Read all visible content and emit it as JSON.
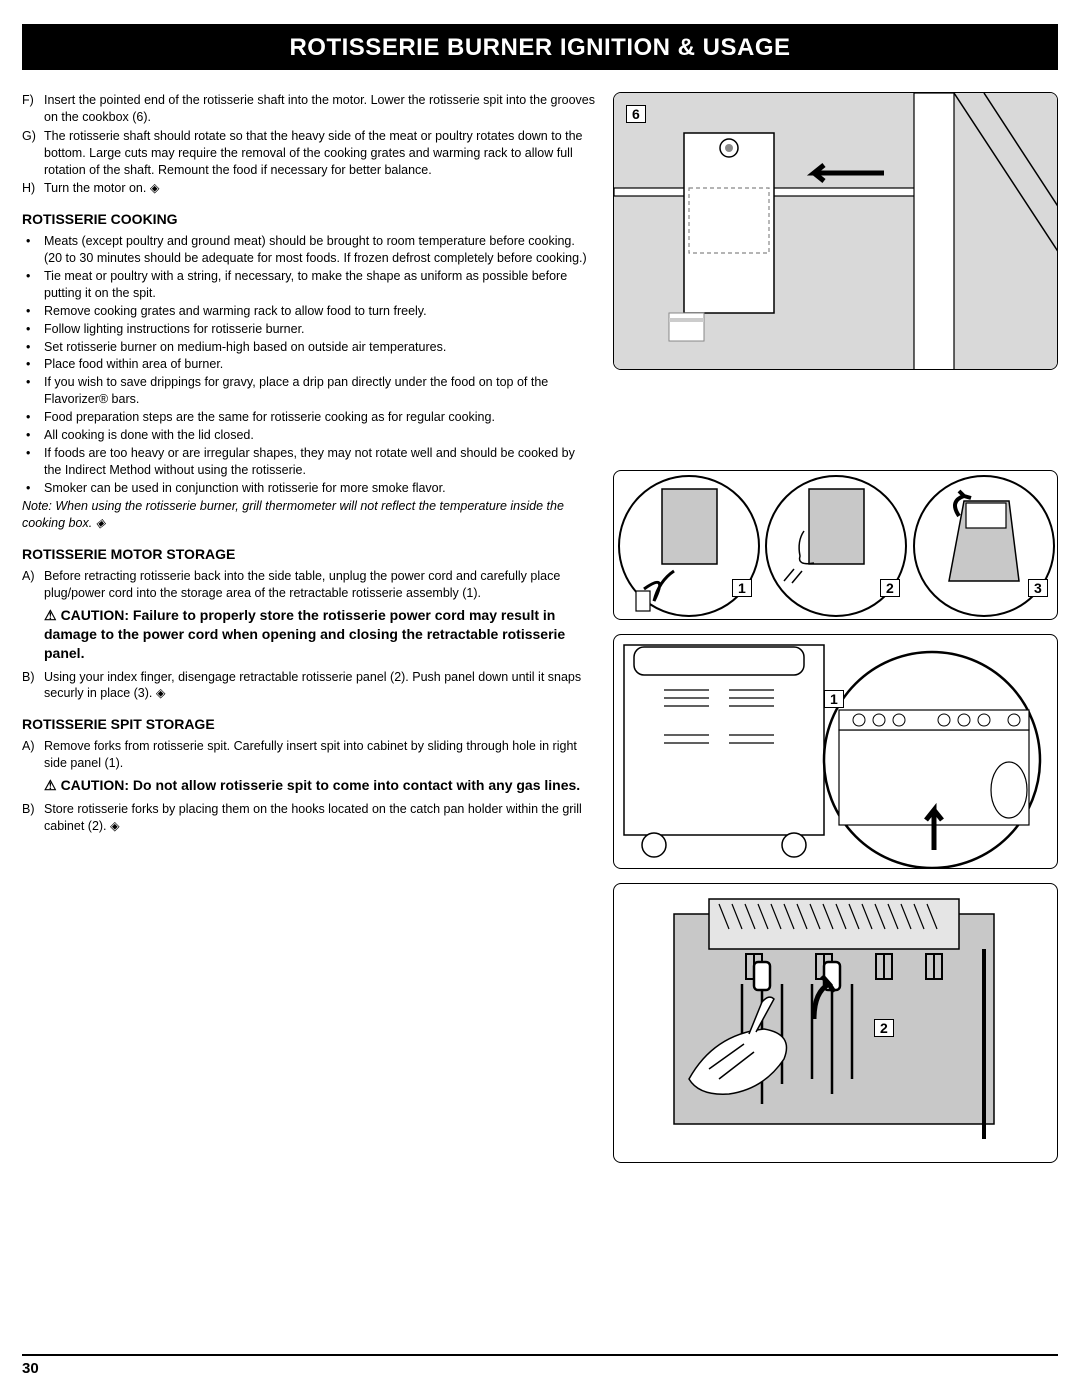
{
  "title": "ROTISSERIE BURNER IGNITION & USAGE",
  "page_number": "30",
  "steps_FH": [
    {
      "lbl": "F)",
      "txt": "Insert the pointed end of the rotisserie shaft into the motor. Lower the rotisserie spit into the grooves on the cookbox (6)."
    },
    {
      "lbl": "G)",
      "txt": "The rotisserie shaft should rotate so that the heavy side of the meat or poultry rotates down to the bottom. Large cuts may require the removal of the cooking grates and warming rack to allow full rotation of the shaft. Remount the food if necessary for better balance."
    },
    {
      "lbl": "H)",
      "txt": "Turn the motor on. ◈"
    }
  ],
  "cooking_head": "ROTISSERIE COOKING",
  "cooking_bullets": [
    "Meats (except poultry and ground meat) should be brought to room temperature before cooking. (20 to 30 minutes should be adequate for most foods. If frozen defrost completely before cooking.)",
    "Tie meat or poultry with a string, if necessary, to make the shape as uniform as possible before putting it on the spit.",
    "Remove cooking grates and warming rack to allow food to turn freely.",
    "Follow lighting instructions for rotisserie burner.",
    "Set rotisserie burner on medium-high based on outside air temperatures.",
    "Place food within area of burner.",
    "If you wish to save drippings for gravy, place a drip pan directly under the food on top of the Flavorizer® bars.",
    "Food preparation steps are the same for rotisserie cooking as for regular cooking.",
    "All cooking is done with the lid closed.",
    "If foods are too heavy or are irregular shapes, they may not rotate well and should be cooked by the Indirect Method without using the rotisserie.",
    "Smoker can be used in conjunction with rotisserie for more smoke flavor."
  ],
  "cooking_note": "Note: When using the rotisserie burner, grill thermometer will not reflect the temperature inside the cooking box. ◈",
  "motor_head": "ROTISSERIE MOTOR STORAGE",
  "motor_stepA": {
    "lbl": "A)",
    "txt": "Before retracting rotisserie back into the side table, unplug the power cord and carefully place plug/power cord into the storage area of the retractable rotisserie assembly (1)."
  },
  "motor_caution": "CAUTION: Failure to properly store the rotisserie power cord may result in damage to the power cord when opening and closing the retractable rotisserie panel.",
  "motor_stepB": {
    "lbl": "B)",
    "txt": "Using your index finger, disengage retractable rotisserie panel (2). Push panel down until it snaps securly in place (3). ◈"
  },
  "spit_head": "ROTISSERIE SPIT STORAGE",
  "spit_stepA": {
    "lbl": "A)",
    "txt": "Remove forks from rotisserie spit. Carefully insert spit into cabinet by sliding through hole in right side panel (1)."
  },
  "spit_caution": "CAUTION: Do not allow rotisserie spit to come into contact with any gas lines.",
  "spit_stepB": {
    "lbl": "B)",
    "txt": "Store rotisserie forks by placing them on the hooks located on the catch pan holder within the grill cabinet (2). ◈"
  },
  "labels": {
    "l6": "6",
    "l1": "1",
    "l2": "2",
    "l3": "3"
  }
}
